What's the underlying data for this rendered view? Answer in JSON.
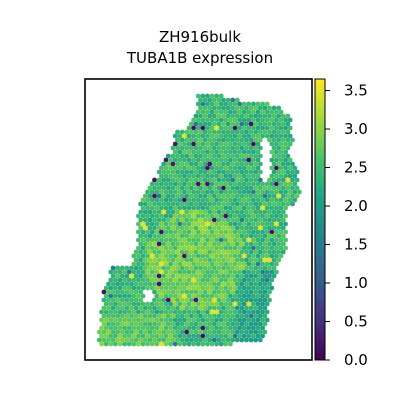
{
  "chart_data": {
    "type": "scatter",
    "plot_kind": "spatial hexagonal spot map",
    "title": "ZH916bulk",
    "subtitle": "TUBA1B expression",
    "xlabel": "",
    "ylabel": "",
    "colormap": "viridis",
    "colorbar": {
      "range": [
        0.0,
        3.65
      ],
      "ticks": [
        0.0,
        0.5,
        1.0,
        1.5,
        2.0,
        2.5,
        3.0,
        3.5
      ],
      "tick_labels": [
        "0.0",
        "0.5",
        "1.0",
        "1.5",
        "2.0",
        "2.5",
        "3.0",
        "3.5"
      ],
      "colors": [
        "#440154",
        "#46327e",
        "#365c8d",
        "#277f8e",
        "#1fa187",
        "#4ac16d",
        "#a0da39",
        "#fde725"
      ]
    },
    "grid": false,
    "axes_ticks_visible": false,
    "value_summary": {
      "typical_range": [
        2.3,
        3.1
      ],
      "low_value_spots_approx": 0.2,
      "high_value_spots_approx": 3.5
    }
  }
}
